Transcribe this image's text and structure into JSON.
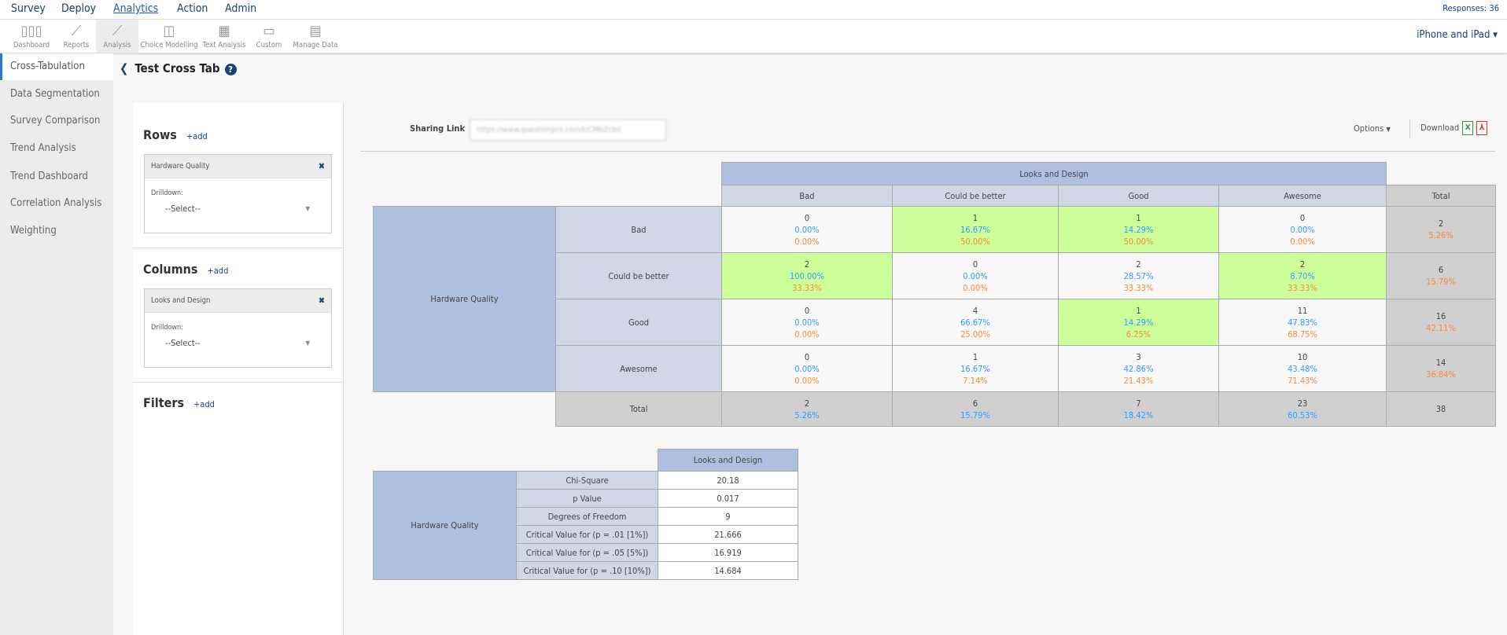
{
  "nav": {
    "items": [
      "Survey",
      "Deploy",
      "Analytics",
      "Action",
      "Admin"
    ],
    "active": "Analytics",
    "responses": "Responses: 36"
  },
  "toolbar": {
    "items": [
      {
        "label": "Dashboard",
        "icon": "bar-chart-icon"
      },
      {
        "label": "Reports",
        "icon": "line-chart-icon"
      },
      {
        "label": "Analysis",
        "icon": "analysis-icon"
      },
      {
        "label": "Choice Modelling",
        "icon": "choice-modelling-icon"
      },
      {
        "label": "Text Analysis",
        "icon": "text-analysis-icon"
      },
      {
        "label": "Custom",
        "icon": "custom-icon"
      },
      {
        "label": "Manage Data",
        "icon": "excel-icon"
      }
    ],
    "active": "Analysis",
    "device": "iPhone and iPad"
  },
  "sidebar": {
    "items": [
      "Cross-Tabulation",
      "Data Segmentation",
      "Survey Comparison",
      "Trend Analysis",
      "Trend Dashboard",
      "Correlation Analysis",
      "Weighting"
    ]
  },
  "page": {
    "title": "Test Cross Tab"
  },
  "panel": {
    "rows_label": "Rows",
    "columns_label": "Columns",
    "filters_label": "Filters",
    "add": "+add",
    "row_var": "Hardware Quality",
    "col_var": "Looks and Design",
    "drilldown": "Drilldown:",
    "select": "--Select--"
  },
  "share": {
    "label": "Sharing Link",
    "value": "https://www.questionpro.com/t/CMbZcb0"
  },
  "options": "Options",
  "download": "Download",
  "colors": {
    "header": "#aebfe0",
    "light": "#d0d8e6",
    "total": "#d0d0d0",
    "highlight": "#ccff99",
    "pct_col": "#3399ff",
    "pct_row": "#ff8833"
  },
  "crosstab": {
    "col_var": "Looks and Design",
    "row_var": "Hardware Quality",
    "columns": [
      "Bad",
      "Could be better",
      "Good",
      "Awesome"
    ],
    "total_label": "Total",
    "rows": [
      {
        "label": "Bad",
        "cells": [
          {
            "n": "0",
            "c": "0.00%",
            "r": "0.00%",
            "hl": false
          },
          {
            "n": "1",
            "c": "16.67%",
            "r": "50.00%",
            "hl": true
          },
          {
            "n": "1",
            "c": "14.29%",
            "r": "50.00%",
            "hl": true
          },
          {
            "n": "0",
            "c": "0.00%",
            "r": "0.00%",
            "hl": false
          }
        ],
        "total": "2",
        "total_pct": "5.26%"
      },
      {
        "label": "Could be better",
        "cells": [
          {
            "n": "2",
            "c": "100.00%",
            "r": "33.33%",
            "hl": true
          },
          {
            "n": "0",
            "c": "0.00%",
            "r": "0.00%",
            "hl": false
          },
          {
            "n": "2",
            "c": "28.57%",
            "r": "33.33%",
            "hl": false
          },
          {
            "n": "2",
            "c": "8.70%",
            "r": "33.33%",
            "hl": true
          }
        ],
        "total": "6",
        "total_pct": "15.79%"
      },
      {
        "label": "Good",
        "cells": [
          {
            "n": "0",
            "c": "0.00%",
            "r": "0.00%",
            "hl": false
          },
          {
            "n": "4",
            "c": "66.67%",
            "r": "25.00%",
            "hl": false
          },
          {
            "n": "1",
            "c": "14.29%",
            "r": "6.25%",
            "hl": true
          },
          {
            "n": "11",
            "c": "47.83%",
            "r": "68.75%",
            "hl": false
          }
        ],
        "total": "16",
        "total_pct": "42.11%"
      },
      {
        "label": "Awesome",
        "cells": [
          {
            "n": "0",
            "c": "0.00%",
            "r": "0.00%",
            "hl": false
          },
          {
            "n": "1",
            "c": "16.67%",
            "r": "7.14%",
            "hl": false
          },
          {
            "n": "3",
            "c": "42.86%",
            "r": "21.43%",
            "hl": false
          },
          {
            "n": "10",
            "c": "43.48%",
            "r": "71.43%",
            "hl": false
          }
        ],
        "total": "14",
        "total_pct": "36.84%"
      }
    ],
    "totals": [
      {
        "n": "2",
        "p": "5.26%"
      },
      {
        "n": "6",
        "p": "15.79%"
      },
      {
        "n": "7",
        "p": "18.42%"
      },
      {
        "n": "23",
        "p": "60.53%"
      }
    ],
    "grand_total": "38"
  },
  "chisq": {
    "col_var": "Looks and Design",
    "row_var": "Hardware Quality",
    "rows": [
      [
        "Chi-Square",
        "20.18"
      ],
      [
        "p Value",
        "0.017"
      ],
      [
        "Degrees of Freedom",
        "9"
      ],
      [
        "Critical Value for (p = .01 [1%])",
        "21.666"
      ],
      [
        "Critical Value for (p = .05 [5%])",
        "16.919"
      ],
      [
        "Critical Value for (p = .10 [10%])",
        "14.684"
      ]
    ]
  }
}
